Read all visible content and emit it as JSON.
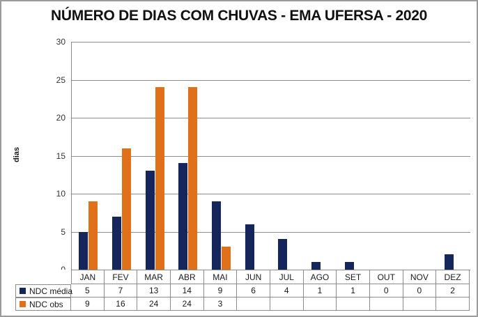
{
  "title": "NÚMERO DE DIAS COM CHUVAS - EMA UFERSA - 2020",
  "chart_data": {
    "type": "bar",
    "title": "NÚMERO DE DIAS COM CHUVAS - EMA UFERSA - 2020",
    "xlabel": "",
    "ylabel": "dias",
    "ylim": [
      0,
      30
    ],
    "ytick_step": 5,
    "grid": true,
    "legend_position": "data-table-row-headers",
    "categories": [
      "JAN",
      "FEV",
      "MAR",
      "ABR",
      "MAI",
      "JUN",
      "JUL",
      "AGO",
      "SET",
      "OUT",
      "NOV",
      "DEZ"
    ],
    "series": [
      {
        "name": "NDC média",
        "color": "#14265C",
        "values": [
          5,
          7,
          13,
          14,
          9,
          6,
          4,
          1,
          1,
          0,
          0,
          2
        ]
      },
      {
        "name": "NDC obs",
        "color": "#E0701A",
        "values": [
          9,
          16,
          24,
          24,
          3,
          null,
          null,
          null,
          null,
          null,
          null,
          null
        ]
      }
    ]
  },
  "colors": {
    "grid": "#8c8c8c",
    "axis": "#8c8c8c",
    "text": "#1a1a1a",
    "outer_border": "#9b9b9b"
  }
}
